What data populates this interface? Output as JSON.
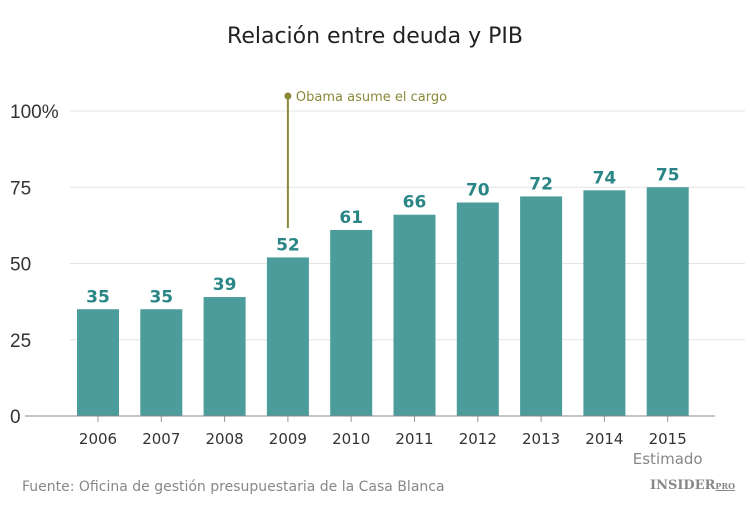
{
  "title": "Relación entre deuda y PIB",
  "source": "Fuente: Oficina de gestión presupuestaria de la Casa Blanca",
  "logo": {
    "main": "INSIDER",
    "sub": "PRO"
  },
  "colors": {
    "bar": "#4c9c9c",
    "label": "#2a8686",
    "annotation": "#8a8a3a",
    "grid": "#e3e3e3"
  },
  "chart_data": {
    "type": "bar",
    "title": "Relación entre deuda y PIB",
    "categories": [
      "2006",
      "2007",
      "2008",
      "2009",
      "2010",
      "2011",
      "2012",
      "2013",
      "2014",
      "2015"
    ],
    "category_sublabels": {
      "2015": "Estimado"
    },
    "values": [
      35,
      35,
      39,
      52,
      61,
      66,
      70,
      72,
      74,
      75
    ],
    "ylim": [
      0,
      100
    ],
    "yticks": [
      0,
      25,
      50,
      75,
      100
    ],
    "ytick_labels": [
      "0",
      "25",
      "50",
      "75",
      "100%"
    ],
    "grid": true,
    "annotation": {
      "category": "2009",
      "text": "Obama asume el cargo"
    }
  }
}
